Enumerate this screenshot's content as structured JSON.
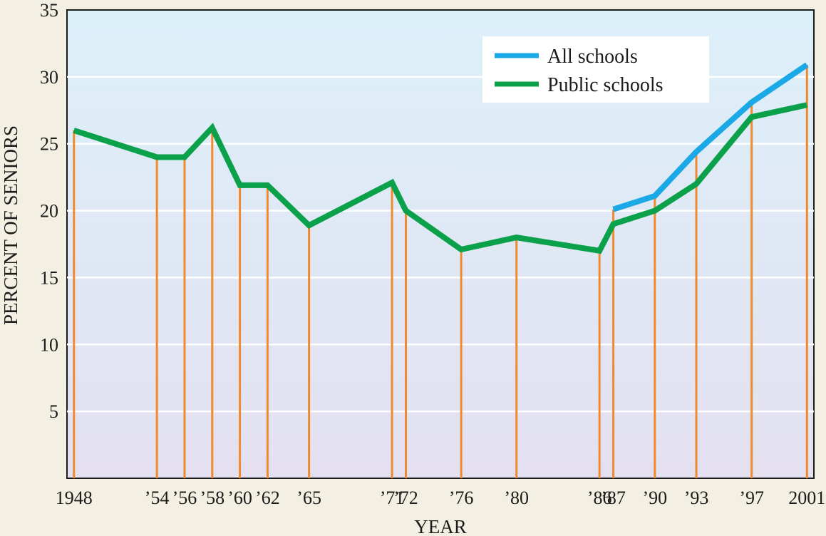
{
  "chart_data": {
    "type": "line",
    "title": "",
    "xlabel": "YEAR",
    "ylabel": "PERCENT OF SENIORS",
    "ylim": [
      0,
      35
    ],
    "yticks": [
      5,
      10,
      15,
      20,
      25,
      30,
      35
    ],
    "grid": true,
    "legend_position": "top-right",
    "x": [
      1948,
      1954,
      1956,
      1958,
      1960,
      1962,
      1965,
      1971,
      1972,
      1976,
      1980,
      1986,
      1987,
      1990,
      1993,
      1997,
      2001
    ],
    "x_tick_labels": [
      "1948",
      "’54",
      "’56",
      "’58",
      "’60",
      "’62",
      "’65",
      "’71",
      "’72",
      "’76",
      "’80",
      "’86",
      "’87",
      "’90",
      "’93",
      "’97",
      "2001"
    ],
    "series": [
      {
        "name": "All schools",
        "color": "#1aa9e6",
        "x": [
          1987,
          1990,
          1993,
          1997,
          2001
        ],
        "values": [
          20.1,
          21.1,
          24.4,
          28.1,
          30.9
        ]
      },
      {
        "name": "Public schools",
        "color": "#0ba14b",
        "x": [
          1948,
          1954,
          1956,
          1958,
          1960,
          1962,
          1965,
          1971,
          1972,
          1976,
          1980,
          1986,
          1987,
          1990,
          1993,
          1997,
          2001
        ],
        "values": [
          26,
          24,
          24,
          26.2,
          21.9,
          21.9,
          18.9,
          22.1,
          20,
          17.1,
          18,
          17,
          19,
          20,
          22,
          27,
          27.9
        ]
      }
    ],
    "drop_lines_color": "#f08a2c"
  }
}
